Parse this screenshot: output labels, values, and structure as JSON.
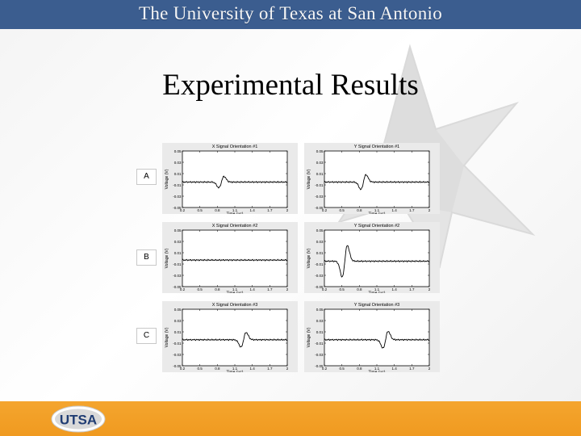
{
  "header": {
    "title": "The University of Texas at San Antonio"
  },
  "slide": {
    "title": "Experimental Results"
  },
  "rows": [
    {
      "label": "A"
    },
    {
      "label": "B"
    },
    {
      "label": "C"
    }
  ],
  "panel_axes": {
    "ylabel": "Voltage (V)",
    "xlabel": "Time (us)",
    "yticks": [
      "0.05",
      "0.03",
      "0.01",
      "-0.01",
      "-0.03",
      "-0.05"
    ],
    "xticks": [
      "0.2",
      "0.5",
      "0.8",
      "1.1",
      "1.4",
      "1.7",
      "2"
    ]
  },
  "chart_data": [
    {
      "type": "line",
      "title": "X Signal Orientation #1",
      "xlabel": "Time (us)",
      "ylabel": "Voltage (V)",
      "xlim": [
        0.2,
        2
      ],
      "ylim": [
        -0.05,
        0.05
      ],
      "grid": false,
      "pulse": {
        "center": 0.87,
        "amplitude": 0.01,
        "baseline": -0.005
      }
    },
    {
      "type": "line",
      "title": "Y Signal Orientation #1",
      "xlabel": "Time (us)",
      "ylabel": "Voltage (V)",
      "xlim": [
        0.2,
        2
      ],
      "ylim": [
        -0.05,
        0.05
      ],
      "grid": false,
      "pulse": {
        "center": 0.87,
        "amplitude": 0.013,
        "baseline": -0.005
      }
    },
    {
      "type": "line",
      "title": "X Signal Orientation #2",
      "xlabel": "Time (us)",
      "ylabel": "Voltage (V)",
      "xlim": [
        0.2,
        2
      ],
      "ylim": [
        -0.05,
        0.05
      ],
      "grid": false,
      "pulse": {
        "center": 0.8,
        "amplitude": 0.0,
        "baseline": -0.003
      }
    },
    {
      "type": "line",
      "title": "Y Signal Orientation #2",
      "xlabel": "Time (us)",
      "ylabel": "Voltage (V)",
      "xlim": [
        0.2,
        2
      ],
      "ylim": [
        -0.05,
        0.05
      ],
      "grid": false,
      "pulse": {
        "center": 0.55,
        "amplitude": 0.028,
        "baseline": -0.005
      }
    },
    {
      "type": "line",
      "title": "X Signal Orientation #3",
      "xlabel": "Time (us)",
      "ylabel": "Voltage (V)",
      "xlim": [
        0.2,
        2
      ],
      "ylim": [
        -0.05,
        0.05
      ],
      "grid": false,
      "pulse": {
        "center": 1.25,
        "amplitude": 0.013,
        "baseline": -0.004
      }
    },
    {
      "type": "line",
      "title": "Y Signal Orientation #3",
      "xlabel": "Time (us)",
      "ylabel": "Voltage (V)",
      "xlim": [
        0.2,
        2
      ],
      "ylim": [
        -0.05,
        0.05
      ],
      "grid": false,
      "pulse": {
        "center": 1.25,
        "amplitude": 0.015,
        "baseline": -0.004
      }
    }
  ],
  "footer": {
    "logo_text": "UTSA"
  },
  "colors": {
    "header": "#3b5d8f",
    "footer": "#f09a20",
    "logo_blue": "#1f3c73"
  }
}
